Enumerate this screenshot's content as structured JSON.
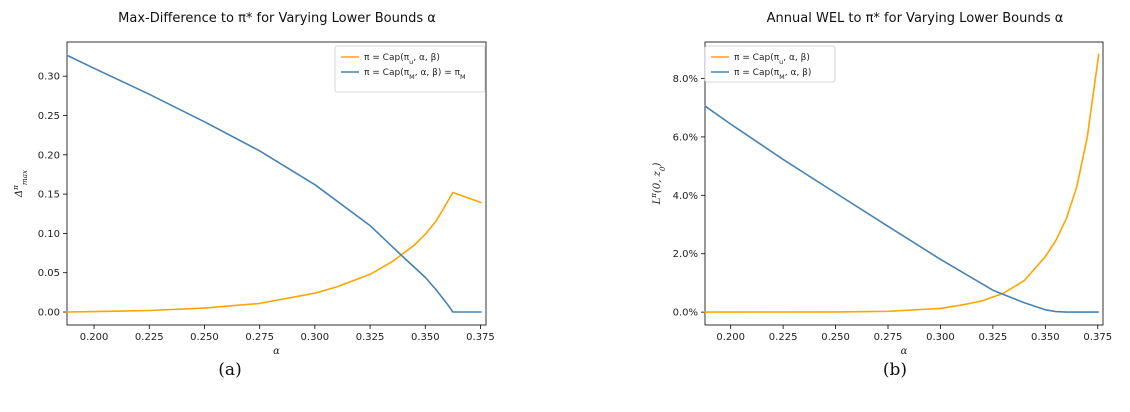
{
  "chart_data": [
    {
      "type": "line",
      "title": "Max-Difference to π* for Varying Lower Bounds α",
      "xlabel": "α",
      "ylabel": "Δ^π_max",
      "xlim": [
        0.18775,
        0.3775
      ],
      "ylim": [
        -0.0165,
        0.3435
      ],
      "xticks": [
        "0.200",
        "0.225",
        "0.250",
        "0.275",
        "0.300",
        "0.325",
        "0.350",
        "0.375"
      ],
      "xtick_values": [
        0.2,
        0.225,
        0.25,
        0.275,
        0.3,
        0.325,
        0.35,
        0.375
      ],
      "yticks": [
        "0.00",
        "0.05",
        "0.10",
        "0.15",
        "0.20",
        "0.25",
        "0.30"
      ],
      "ytick_values": [
        0,
        0.05,
        0.1,
        0.15,
        0.2,
        0.25,
        0.3
      ],
      "legend_position": "top-right",
      "caption": "(a)",
      "series": [
        {
          "name": "π = Cap(π_u, α, β)",
          "color": "#FFA500",
          "x": [
            0.1875,
            0.2,
            0.225,
            0.25,
            0.275,
            0.3,
            0.31,
            0.325,
            0.335,
            0.345,
            0.35,
            0.355,
            0.3625,
            0.3755
          ],
          "y": [
            0.0,
            0.0005,
            0.002,
            0.005,
            0.011,
            0.024,
            0.032,
            0.048,
            0.064,
            0.085,
            0.099,
            0.116,
            0.152,
            0.139
          ]
        },
        {
          "name": "π = Cap(π_M, α, β) = π_M",
          "color": "#4682B4",
          "x": [
            0.1875,
            0.2,
            0.225,
            0.25,
            0.275,
            0.3,
            0.325,
            0.34,
            0.35,
            0.355,
            0.36,
            0.3625,
            0.3755
          ],
          "y": [
            0.327,
            0.31,
            0.277,
            0.242,
            0.205,
            0.162,
            0.11,
            0.07,
            0.044,
            0.028,
            0.01,
            0.0,
            0.0
          ]
        }
      ]
    },
    {
      "type": "line",
      "title": "Annual WEL to π* for Varying Lower Bounds α",
      "xlabel": "α",
      "ylabel": "L^π(0, z_0)",
      "xlim": [
        0.18775,
        0.3775
      ],
      "ylim": [
        -0.0044,
        0.0925
      ],
      "xticks": [
        "0.200",
        "0.225",
        "0.250",
        "0.275",
        "0.300",
        "0.325",
        "0.350",
        "0.375"
      ],
      "xtick_values": [
        0.2,
        0.225,
        0.25,
        0.275,
        0.3,
        0.325,
        0.35,
        0.375
      ],
      "yticks": [
        "0.0%",
        "2.0%",
        "4.0%",
        "6.0%",
        "8.0%"
      ],
      "ytick_values": [
        0,
        0.02,
        0.04,
        0.06,
        0.08
      ],
      "legend_position": "top-left",
      "caption": "(b)",
      "series": [
        {
          "name": "π = Cap(π_u, α, β)",
          "color": "#FFA500",
          "x": [
            0.1875,
            0.25,
            0.275,
            0.3,
            0.31,
            0.32,
            0.33,
            0.34,
            0.35,
            0.355,
            0.36,
            0.365,
            0.37,
            0.3755
          ],
          "y": [
            0.0,
            0.0001,
            0.0003,
            0.0013,
            0.0024,
            0.0039,
            0.0065,
            0.0108,
            0.019,
            0.0245,
            0.032,
            0.043,
            0.06,
            0.0885
          ]
        },
        {
          "name": "π = Cap(π_M, α, β)",
          "color": "#4682B4",
          "x": [
            0.1875,
            0.2,
            0.225,
            0.25,
            0.275,
            0.3,
            0.325,
            0.34,
            0.35,
            0.355,
            0.36,
            0.3755
          ],
          "y": [
            0.0707,
            0.0644,
            0.0523,
            0.0408,
            0.0294,
            0.0181,
            0.0075,
            0.0032,
            0.0008,
            0.0002,
            0.0,
            0.0
          ]
        }
      ]
    }
  ]
}
